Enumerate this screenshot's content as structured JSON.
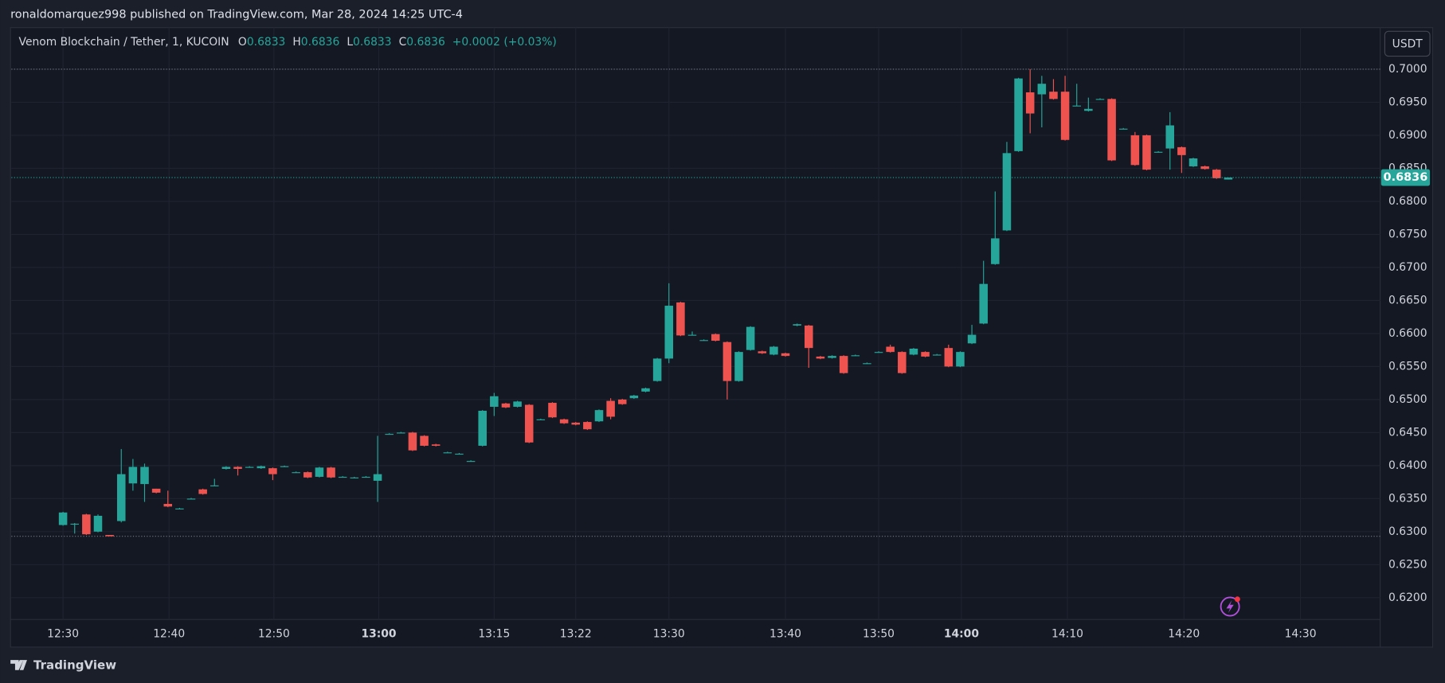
{
  "publisher": "ronaldomarquez998 published on TradingView.com, Mar 28, 2024 14:25 UTC-4",
  "footer": "TradingView",
  "chart_data": {
    "type": "candlestick",
    "title": "Venom Blockchain / Tether, 1, KUCOIN",
    "ohlc_keys": [
      "O",
      "H",
      "L",
      "C"
    ],
    "change": "+0.0002 (+0.03%)",
    "currency": "USDT",
    "up_color": "#26a69a",
    "down_color": "#ef5350",
    "open": [
      0.631,
      0.6312,
      0.6326,
      0.63,
      0.6295,
      0.6316,
      0.6373,
      0.6372,
      0.6365,
      0.6342,
      0.6335,
      0.635,
      0.6364,
      0.637,
      0.6395,
      0.6398,
      0.6398,
      0.6396,
      0.6396,
      0.6399,
      0.639,
      0.639,
      0.6383,
      0.6397,
      0.6383,
      0.6382,
      0.6383,
      0.6377,
      0.6448,
      0.645,
      0.645,
      0.6445,
      0.6432,
      0.642,
      0.6418,
      0.6407,
      0.643,
      0.6489,
      0.6494,
      0.6489,
      0.6492,
      0.647,
      0.6495,
      0.647,
      0.6465,
      0.6466,
      0.6467,
      0.6498,
      0.65,
      0.6502,
      0.6512,
      0.6528,
      0.6562,
      0.6647,
      0.6598,
      0.659,
      0.6599,
      0.6587,
      0.6528,
      0.6575,
      0.6573,
      0.6568,
      0.657,
      0.6612,
      0.6612,
      0.6565,
      0.6563,
      0.6566,
      0.6567,
      0.6555,
      0.6572,
      0.658,
      0.6572,
      0.6568,
      0.6572,
      0.6568,
      0.6578,
      0.655,
      0.6585,
      0.6615,
      0.6705,
      0.6756,
      0.6876,
      0.6965,
      0.6962,
      0.6966,
      0.6966,
      0.6945,
      0.6937,
      0.6955,
      0.6955,
      0.691,
      0.69,
      0.69,
      0.6875,
      0.688,
      0.6882,
      0.6853,
      0.6853,
      0.6848,
      0.6833
    ],
    "high": [
      0.633,
      0.6313,
      0.6327,
      0.6326,
      0.6295,
      0.6425,
      0.641,
      0.6403,
      0.6365,
      0.6362,
      0.6336,
      0.6351,
      0.6365,
      0.638,
      0.6399,
      0.6399,
      0.6399,
      0.64,
      0.6397,
      0.64,
      0.6391,
      0.6391,
      0.6398,
      0.6398,
      0.6384,
      0.6383,
      0.6384,
      0.6445,
      0.6449,
      0.6451,
      0.6451,
      0.6446,
      0.6433,
      0.6421,
      0.6419,
      0.6408,
      0.6484,
      0.651,
      0.6495,
      0.6498,
      0.6493,
      0.6471,
      0.6496,
      0.6471,
      0.6466,
      0.6467,
      0.6485,
      0.6502,
      0.6501,
      0.6507,
      0.6518,
      0.6563,
      0.6676,
      0.6648,
      0.6603,
      0.6591,
      0.66,
      0.6588,
      0.6573,
      0.6611,
      0.6574,
      0.6581,
      0.6571,
      0.6615,
      0.6613,
      0.6566,
      0.6567,
      0.6567,
      0.6568,
      0.6556,
      0.6573,
      0.6583,
      0.6573,
      0.6578,
      0.6573,
      0.6569,
      0.6583,
      0.6573,
      0.6613,
      0.671,
      0.6815,
      0.689,
      0.6987,
      0.7,
      0.699,
      0.6985,
      0.699,
      0.6978,
      0.6957,
      0.6956,
      0.6956,
      0.6911,
      0.6905,
      0.6901,
      0.6876,
      0.6935,
      0.6883,
      0.6866,
      0.6854,
      0.6849,
      0.6836
    ],
    "low": [
      0.6309,
      0.6297,
      0.6295,
      0.6299,
      0.6293,
      0.6314,
      0.6362,
      0.6345,
      0.6358,
      0.6337,
      0.6334,
      0.6349,
      0.6356,
      0.6369,
      0.6394,
      0.6385,
      0.6397,
      0.6395,
      0.6378,
      0.6398,
      0.6389,
      0.6381,
      0.6382,
      0.6381,
      0.6382,
      0.6381,
      0.6382,
      0.6345,
      0.6447,
      0.6449,
      0.6422,
      0.6429,
      0.6429,
      0.6419,
      0.6417,
      0.6406,
      0.6429,
      0.6475,
      0.6487,
      0.6488,
      0.6434,
      0.6469,
      0.6472,
      0.6463,
      0.6461,
      0.6454,
      0.6466,
      0.647,
      0.6492,
      0.6501,
      0.6511,
      0.6527,
      0.6555,
      0.6596,
      0.6597,
      0.6589,
      0.6588,
      0.65,
      0.6527,
      0.6574,
      0.6569,
      0.6567,
      0.6565,
      0.6611,
      0.6548,
      0.6561,
      0.6562,
      0.6539,
      0.6566,
      0.6554,
      0.6571,
      0.6571,
      0.6539,
      0.6567,
      0.6564,
      0.6567,
      0.6549,
      0.6549,
      0.6584,
      0.6614,
      0.6704,
      0.6755,
      0.6875,
      0.6903,
      0.6912,
      0.6954,
      0.6892,
      0.6944,
      0.6936,
      0.6954,
      0.6861,
      0.6909,
      0.6854,
      0.6847,
      0.6874,
      0.6848,
      0.6843,
      0.6852,
      0.6848,
      0.6834,
      0.6833
    ],
    "close": [
      0.6329,
      0.6312,
      0.6296,
      0.6324,
      0.6293,
      0.6387,
      0.6398,
      0.6398,
      0.6359,
      0.6338,
      0.6335,
      0.635,
      0.6357,
      0.637,
      0.6398,
      0.6395,
      0.6398,
      0.6399,
      0.6387,
      0.6399,
      0.639,
      0.6382,
      0.6397,
      0.6382,
      0.6383,
      0.6382,
      0.6383,
      0.6387,
      0.6448,
      0.645,
      0.6423,
      0.643,
      0.643,
      0.642,
      0.6418,
      0.6407,
      0.6483,
      0.6505,
      0.6488,
      0.6497,
      0.6435,
      0.647,
      0.6473,
      0.6464,
      0.6462,
      0.6455,
      0.6484,
      0.6474,
      0.6493,
      0.6506,
      0.6517,
      0.6562,
      0.6642,
      0.6597,
      0.6598,
      0.659,
      0.6589,
      0.6528,
      0.6572,
      0.661,
      0.657,
      0.658,
      0.6566,
      0.6614,
      0.6578,
      0.6562,
      0.6566,
      0.654,
      0.6567,
      0.6555,
      0.6572,
      0.6572,
      0.654,
      0.6577,
      0.6565,
      0.6568,
      0.655,
      0.6572,
      0.6598,
      0.6675,
      0.6744,
      0.6873,
      0.6986,
      0.6933,
      0.6978,
      0.6955,
      0.6893,
      0.6945,
      0.694,
      0.6955,
      0.6862,
      0.691,
      0.6855,
      0.6848,
      0.6875,
      0.6915,
      0.687,
      0.6865,
      0.6849,
      0.6835,
      0.6836
    ],
    "session_high": 0.7,
    "session_low": 0.6293,
    "xlim": [
      -4.43,
      113.04
    ],
    "xticks": [
      {
        "value": 0,
        "label": "12:30"
      },
      {
        "value": 9.1,
        "label": "12:40"
      },
      {
        "value": 18.1,
        "label": "12:50"
      },
      {
        "value": 27.1,
        "label": "13:00"
      },
      {
        "value": 37,
        "label": "13:15"
      },
      {
        "value": 44,
        "label": "13:22"
      },
      {
        "value": 52,
        "label": "13:30"
      },
      {
        "value": 62,
        "label": "13:40"
      },
      {
        "value": 70,
        "label": "13:50"
      },
      {
        "value": 77.1,
        "label": "14:00"
      },
      {
        "value": 86.2,
        "label": "14:10"
      },
      {
        "value": 96.2,
        "label": "14:20"
      },
      {
        "value": 106.2,
        "label": "14:30"
      }
    ],
    "ylim": [
      0.6167,
      0.7063
    ],
    "yticks": [
      {
        "value": 0.62,
        "label": "0.6200"
      },
      {
        "value": 0.625,
        "label": "0.6250"
      },
      {
        "value": 0.63,
        "label": "0.6300"
      },
      {
        "value": 0.635,
        "label": "0.6350"
      },
      {
        "value": 0.64,
        "label": "0.6400"
      },
      {
        "value": 0.645,
        "label": "0.6450"
      },
      {
        "value": 0.65,
        "label": "0.6500"
      },
      {
        "value": 0.655,
        "label": "0.6550"
      },
      {
        "value": 0.66,
        "label": "0.6600"
      },
      {
        "value": 0.665,
        "label": "0.6650"
      },
      {
        "value": 0.67,
        "label": "0.6700"
      },
      {
        "value": 0.675,
        "label": "0.6750"
      },
      {
        "value": 0.68,
        "label": "0.6800"
      },
      {
        "value": 0.685,
        "label": "0.6850"
      },
      {
        "value": 0.69,
        "label": "0.6900"
      },
      {
        "value": 0.695,
        "label": "0.6950"
      },
      {
        "value": 0.7,
        "label": "0.7000"
      }
    ],
    "grid": true
  }
}
